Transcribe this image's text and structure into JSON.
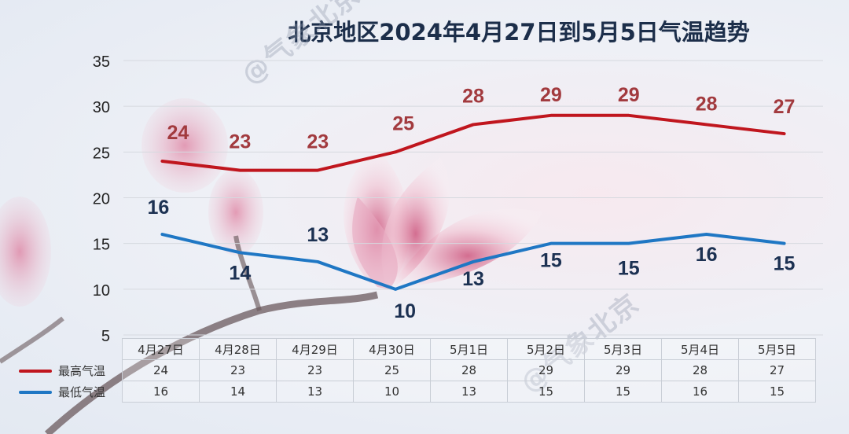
{
  "chart_data": {
    "type": "line",
    "title": "北京地区2024年4月27日到5月5日气温趋势",
    "categories": [
      "4月27日",
      "4月28日",
      "4月29日",
      "4月30日",
      "5月1日",
      "5月2日",
      "5月3日",
      "5月4日",
      "5月5日"
    ],
    "series": [
      {
        "name": "最高气温",
        "values": [
          24,
          23,
          23,
          25,
          28,
          29,
          29,
          28,
          27
        ],
        "color": "#c0161e",
        "label_color": "#a23a3e"
      },
      {
        "name": "最低气温",
        "values": [
          16,
          14,
          13,
          10,
          13,
          15,
          15,
          16,
          15
        ],
        "color": "#1f77c4",
        "label_color": "#1c3152"
      }
    ],
    "yticks": [
      5,
      10,
      15,
      20,
      25,
      30,
      35
    ],
    "ylim": [
      5,
      35
    ],
    "grid": true,
    "legend": "table-left",
    "data_labels": true
  },
  "watermark_text": "@气象北京"
}
